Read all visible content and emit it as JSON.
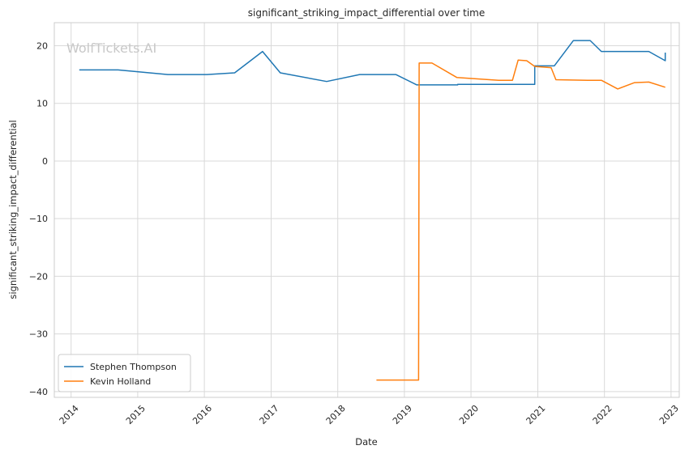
{
  "chart_data": {
    "type": "line",
    "title": "significant_striking_impact_differential over time",
    "xlabel": "Date",
    "ylabel": "significant_striking_impact_differential",
    "watermark": "WolfTickets.AI",
    "xlim": [
      "2013-10-01",
      "2023-02-15"
    ],
    "ylim": [
      -41,
      24
    ],
    "x_ticks": [
      "2014",
      "2015",
      "2016",
      "2017",
      "2018",
      "2019",
      "2020",
      "2021",
      "2022",
      "2023"
    ],
    "y_ticks": [
      20,
      10,
      0,
      -10,
      -20,
      -30,
      -40
    ],
    "y_tick_labels": [
      "20",
      "10",
      "0",
      "−10",
      "−20",
      "−30",
      "−40"
    ],
    "grid": true,
    "legend_position": "lower-left",
    "series": [
      {
        "name": "Stephen Thompson",
        "color": "#1f77b4",
        "points": [
          [
            "2014-02-15",
            15.8
          ],
          [
            "2014-09-15",
            15.8
          ],
          [
            "2015-06-15",
            15.0
          ],
          [
            "2016-01-15",
            15.0
          ],
          [
            "2016-06-15",
            15.3
          ],
          [
            "2016-11-15",
            19.0
          ],
          [
            "2017-02-20",
            15.3
          ],
          [
            "2017-11-01",
            13.8
          ],
          [
            "2018-05-01",
            15.0
          ],
          [
            "2018-11-15",
            15.0
          ],
          [
            "2019-03-10",
            13.2
          ],
          [
            "2019-10-20",
            13.2
          ],
          [
            "2019-10-20",
            13.3
          ],
          [
            "2020-12-15",
            13.3
          ],
          [
            "2020-12-15",
            16.5
          ],
          [
            "2021-04-01",
            16.5
          ],
          [
            "2021-07-15",
            20.9
          ],
          [
            "2021-10-15",
            20.9
          ],
          [
            "2021-12-15",
            19.0
          ],
          [
            "2022-09-01",
            19.0
          ],
          [
            "2022-11-30",
            17.4
          ],
          [
            "2022-11-30",
            18.8
          ]
        ]
      },
      {
        "name": "Kevin Holland",
        "color": "#ff7f0e",
        "points": [
          [
            "2018-08-01",
            -38.0
          ],
          [
            "2019-03-20",
            -38.0
          ],
          [
            "2019-03-23",
            17.0
          ],
          [
            "2019-06-01",
            17.0
          ],
          [
            "2019-10-15",
            14.5
          ],
          [
            "2020-06-01",
            14.0
          ],
          [
            "2020-08-15",
            14.0
          ],
          [
            "2020-09-15",
            17.5
          ],
          [
            "2020-11-01",
            17.4
          ],
          [
            "2020-12-15",
            16.4
          ],
          [
            "2021-03-15",
            16.2
          ],
          [
            "2021-04-10",
            14.1
          ],
          [
            "2021-10-01",
            14.0
          ],
          [
            "2021-12-15",
            14.0
          ],
          [
            "2022-03-15",
            12.5
          ],
          [
            "2022-06-15",
            13.6
          ],
          [
            "2022-09-01",
            13.7
          ],
          [
            "2022-11-30",
            12.8
          ]
        ]
      }
    ]
  }
}
